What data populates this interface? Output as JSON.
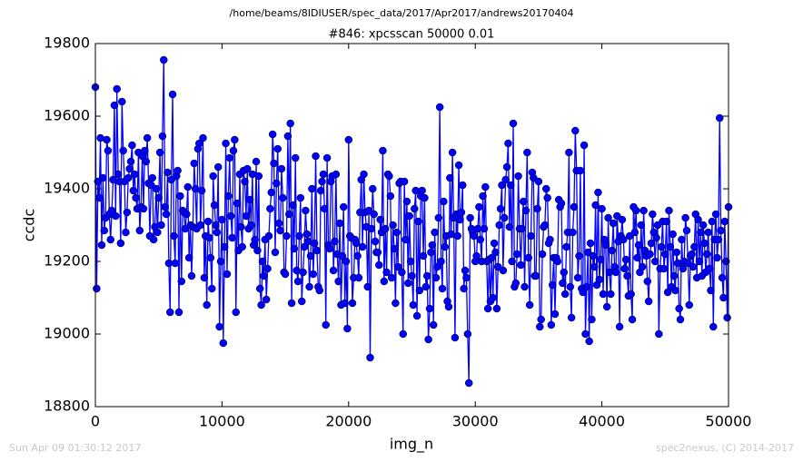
{
  "chart_data": {
    "type": "line",
    "suptitle": "/home/beams/8IDIUSER/spec_data/2017/Apr2017/andrews20170404",
    "title": "#846: xpcsscan 50000 0.01",
    "xlabel": "img_n",
    "ylabel": "ccdc",
    "footer_left": "Sun Apr 09 01:30:12 2017",
    "footer_right": "spec2nexus, (C) 2014-2017",
    "xlim": [
      0,
      50000
    ],
    "xticks": [
      0,
      10000,
      20000,
      30000,
      40000,
      50000
    ],
    "ylim": [
      18800,
      19800
    ],
    "yticks": [
      18800,
      19000,
      19200,
      19400,
      19600,
      19800
    ],
    "series": [
      {
        "name": "ccdc",
        "color": "#0000ff",
        "x": [
          0,
          100,
          200,
          300,
          400,
          500,
          600,
          700,
          800,
          900,
          1000,
          1100,
          1200,
          1300,
          1400,
          1500,
          1600,
          1700,
          1800,
          1900,
          2000,
          2100,
          2200,
          2300,
          2400,
          2500,
          2600,
          2700,
          2800,
          2900,
          3000,
          3100,
          3200,
          3300,
          3400,
          3500,
          3600,
          3700,
          3800,
          3900,
          4000,
          4100,
          4200,
          4300,
          4400,
          4500,
          4600,
          4700,
          4800,
          4900,
          5000,
          5100,
          5200,
          5300,
          5400,
          5500,
          5600,
          5700,
          5800,
          5900,
          6000,
          6100,
          6200,
          6300,
          6400,
          6500,
          6600,
          6700,
          6800,
          6900,
          7000,
          7100,
          7200,
          7300,
          7400,
          7500,
          7600,
          7700,
          7800,
          7900,
          8000,
          8100,
          8200,
          8300,
          8400,
          8500,
          8600,
          8700,
          8800,
          8900,
          9000,
          9100,
          9200,
          9300,
          9400,
          9500,
          9600,
          9700,
          9800,
          9900,
          10000,
          10100,
          10200,
          10300,
          10400,
          10500,
          10600,
          10700,
          10800,
          10900,
          11000,
          11100,
          11200,
          11300,
          11400,
          11500,
          11600,
          11700,
          11800,
          11900,
          12000,
          12100,
          12200,
          12300,
          12400,
          12500,
          12600,
          12700,
          12800,
          12900,
          13000,
          13100,
          13200,
          13300,
          13400,
          13500,
          13600,
          13700,
          13800,
          13900,
          14000,
          14100,
          14200,
          14300,
          14400,
          14500,
          14600,
          14700,
          14800,
          14900,
          15000,
          15100,
          15200,
          15300,
          15400,
          15500,
          15600,
          15700,
          15800,
          15900,
          16000,
          16100,
          16200,
          16300,
          16400,
          16500,
          16600,
          16700,
          16800,
          16900,
          17000,
          17100,
          17200,
          17300,
          17400,
          17500,
          17600,
          17700,
          17800,
          17900,
          18000,
          18100,
          18200,
          18300,
          18400,
          18500,
          18600,
          18700,
          18800,
          18900,
          19000,
          19100,
          19200,
          19300,
          19400,
          19500,
          19600,
          19700,
          19800,
          19900,
          20000,
          20100,
          20200,
          20300,
          20400,
          20500,
          20600,
          20700,
          20800,
          20900,
          21000,
          21100,
          21200,
          21300,
          21400,
          21500,
          21600,
          21700,
          21800,
          21900,
          22000,
          22100,
          22200,
          22300,
          22400,
          22500,
          22600,
          22700,
          22800,
          22900,
          23000,
          23100,
          23200,
          23300,
          23400,
          23500,
          23600,
          23700,
          23800,
          23900,
          24000,
          24100,
          24200,
          24300,
          24400,
          24500,
          24600,
          24700,
          24800,
          24900,
          25000,
          25100,
          25200,
          25300,
          25400,
          25500,
          25600,
          25700,
          25800,
          25900,
          26000,
          26100,
          26200,
          26300,
          26400,
          26500,
          26600,
          26700,
          26800,
          26900,
          27000,
          27100,
          27200,
          27300,
          27400,
          27500,
          27600,
          27700,
          27800,
          27900,
          28000,
          28100,
          28200,
          28300,
          28400,
          28500,
          28600,
          28700,
          28800,
          28900,
          29000,
          29100,
          29200,
          29300,
          29400,
          29500,
          29600,
          29700,
          29800,
          29900,
          30000,
          30100,
          30200,
          30300,
          30400,
          30500,
          30600,
          30700,
          30800,
          30900,
          31000,
          31100,
          31200,
          31300,
          31400,
          31500,
          31600,
          31700,
          31800,
          31900,
          32000,
          32100,
          32200,
          32300,
          32400,
          32500,
          32600,
          32700,
          32800,
          32900,
          33000,
          33100,
          33200,
          33300,
          33400,
          33500,
          33600,
          33700,
          33800,
          33900,
          34000,
          34100,
          34200,
          34300,
          34400,
          34500,
          34600,
          34700,
          34800,
          34900,
          35000,
          35100,
          35200,
          35300,
          35400,
          35500,
          35600,
          35700,
          35800,
          35900,
          36000,
          36100,
          36200,
          36300,
          36400,
          36500,
          36600,
          36700,
          36800,
          36900,
          37000,
          37100,
          37200,
          37300,
          37400,
          37500,
          37600,
          37700,
          37800,
          37900,
          38000,
          38100,
          38200,
          38300,
          38400,
          38500,
          38600,
          38700,
          38800,
          38900,
          39000,
          39100,
          39200,
          39300,
          39400,
          39500,
          39600,
          39700,
          39800,
          39900,
          40000,
          40100,
          40200,
          40300,
          40400,
          40500,
          40600,
          40700,
          40800,
          40900,
          41000,
          41100,
          41200,
          41300,
          41400,
          41500,
          41600,
          41700,
          41800,
          41900,
          42000,
          42100,
          42200,
          42300,
          42400,
          42500,
          42600,
          42700,
          42800,
          42900,
          43000,
          43100,
          43200,
          43300,
          43400,
          43500,
          43600,
          43700,
          43800,
          43900,
          44000,
          44100,
          44200,
          44300,
          44400,
          44500,
          44600,
          44700,
          44800,
          44900,
          45000,
          45100,
          45200,
          45300,
          45400,
          45500,
          45600,
          45700,
          45800,
          45900,
          46000,
          46100,
          46200,
          46300,
          46400,
          46500,
          46600,
          46700,
          46800,
          46900,
          47000,
          47100,
          47200,
          47300,
          47400,
          47500,
          47600,
          47700,
          47800,
          47900,
          48000,
          48100,
          48200,
          48300,
          48400,
          48500,
          48600,
          48700,
          48800,
          48900,
          49000,
          49100,
          49200,
          49300,
          49400,
          49500,
          49600,
          49700,
          49800,
          49900,
          50000
        ],
        "values": [
          19680,
          19125,
          19420,
          19375,
          19540,
          19245,
          19430,
          19285,
          19320,
          19535,
          19505,
          19330,
          19260,
          19340,
          19425,
          19630,
          19325,
          19675,
          19440,
          19420,
          19250,
          19640,
          19505,
          19420,
          19280,
          19335,
          19430,
          19455,
          19475,
          19520,
          19395,
          19440,
          19375,
          19345,
          19500,
          19285,
          19350,
          19490,
          19345,
          19505,
          19475,
          19540,
          19415,
          19270,
          19410,
          19430,
          19260,
          19295,
          19400,
          19280,
          19375,
          19500,
          19300,
          19545,
          19755,
          19350,
          19330,
          19445,
          19195,
          19060,
          19425,
          19660,
          19270,
          19195,
          19435,
          19450,
          19060,
          19380,
          19145,
          19340,
          19335,
          19290,
          19330,
          19405,
          19210,
          19300,
          19160,
          19295,
          19470,
          19400,
          19290,
          19510,
          19525,
          19300,
          19395,
          19540,
          19155,
          19270,
          19080,
          19310,
          19265,
          19210,
          19125,
          19435,
          19355,
          19300,
          19280,
          19460,
          19020,
          19200,
          19315,
          18975,
          19240,
          19525,
          19165,
          19380,
          19485,
          19325,
          19265,
          19505,
          19535,
          19060,
          19360,
          19230,
          19440,
          19295,
          19240,
          19450,
          19420,
          19325,
          19455,
          19290,
          19370,
          19300,
          19440,
          19245,
          19260,
          19475,
          19230,
          19435,
          19125,
          19080,
          19200,
          19160,
          19260,
          19095,
          19180,
          19270,
          19345,
          19390,
          19550,
          19470,
          19225,
          19415,
          19510,
          19305,
          19285,
          19455,
          19375,
          19170,
          19165,
          19270,
          19545,
          19330,
          19580,
          19085,
          19355,
          19235,
          19485,
          19175,
          19145,
          19270,
          19375,
          19090,
          19170,
          19240,
          19340,
          19275,
          19255,
          19130,
          19215,
          19400,
          19165,
          19250,
          19490,
          19230,
          19130,
          19120,
          19395,
          19420,
          19440,
          19345,
          19025,
          19485,
          19245,
          19235,
          19420,
          19435,
          19175,
          19255,
          19440,
          19220,
          19145,
          19305,
          19080,
          19215,
          19350,
          19085,
          19200,
          19015,
          19535,
          19270,
          19265,
          19085,
          19155,
          19260,
          19250,
          19215,
          19155,
          19335,
          19425,
          19240,
          19440,
          19335,
          19295,
          19130,
          19340,
          18935,
          19290,
          19400,
          19330,
          19255,
          19225,
          19225,
          19190,
          19315,
          19280,
          19505,
          19145,
          19290,
          19170,
          19440,
          19435,
          19380,
          19155,
          19300,
          19235,
          19085,
          19280,
          19185,
          19415,
          19420,
          19170,
          19000,
          19420,
          19260,
          19365,
          19140,
          19325,
          19200,
          19160,
          19080,
          19345,
          19395,
          19050,
          19310,
          19120,
          19380,
          19395,
          19215,
          19375,
          19130,
          19160,
          18985,
          19070,
          19225,
          19245,
          19025,
          19280,
          19155,
          19185,
          19320,
          19625,
          19200,
          19125,
          19365,
          19240,
          19270,
          19090,
          19075,
          19430,
          19275,
          19500,
          19320,
          18990,
          19330,
          19270,
          19465,
          19315,
          19335,
          19410,
          19125,
          19175,
          19155,
          19000,
          18865,
          19320,
          19290,
          19280,
          19270,
          19200,
          19215,
          19290,
          19350,
          19260,
          19200,
          19380,
          19290,
          19405,
          19200,
          19070,
          19205,
          19090,
          19210,
          19100,
          19250,
          19225,
          19070,
          19185,
          19300,
          19345,
          19410,
          19175,
          19320,
          19425,
          19460,
          19525,
          19295,
          19410,
          19200,
          19580,
          19130,
          19140,
          19220,
          19435,
          19290,
          19190,
          19290,
          19365,
          19130,
          19340,
          19500,
          19210,
          19080,
          19270,
          19445,
          19430,
          19160,
          19160,
          19345,
          19420,
          19020,
          19040,
          19220,
          19295,
          19300,
          19400,
          19375,
          19250,
          19260,
          19025,
          19135,
          19210,
          19055,
          19210,
          19200,
          19370,
          19350,
          19360,
          19140,
          19170,
          19110,
          19240,
          19280,
          19500,
          19130,
          19045,
          19280,
          19350,
          19560,
          19450,
          19155,
          19215,
          19450,
          19125,
          19115,
          19520,
          19000,
          19130,
          19225,
          18980,
          19250,
          19040,
          19215,
          19185,
          19355,
          19135,
          19390,
          19150,
          19205,
          19345,
          19110,
          19260,
          19245,
          19075,
          19320,
          19170,
          19110,
          19230,
          19305,
          19185,
          19170,
          19325,
          19255,
          19020,
          19270,
          19315,
          19260,
          19180,
          19205,
          19160,
          19105,
          19270,
          19110,
          19040,
          19350,
          19280,
          19340,
          19210,
          19245,
          19170,
          19300,
          19185,
          19340,
          19230,
          19215,
          19145,
          19090,
          19220,
          19250,
          19330,
          19280,
          19200,
          19265,
          19300,
          19000,
          19180,
          19240,
          19310,
          19180,
          19220,
          19310,
          19115,
          19340,
          19240,
          19130,
          19275,
          19160,
          19120,
          19225,
          19195,
          19070,
          19040,
          19260,
          19180,
          19200,
          19320,
          19285,
          19195,
          19080,
          19215,
          19220,
          19185,
          19240,
          19330,
          19155,
          19315,
          19200,
          19280,
          19160,
          19300,
          19250,
          19170,
          19220,
          19280,
          19180,
          19120,
          19310,
          19020,
          19260,
          19330,
          19210,
          19260,
          19595,
          19285,
          19155,
          19100,
          19310,
          19200,
          19045,
          19350
        ]
      }
    ]
  }
}
